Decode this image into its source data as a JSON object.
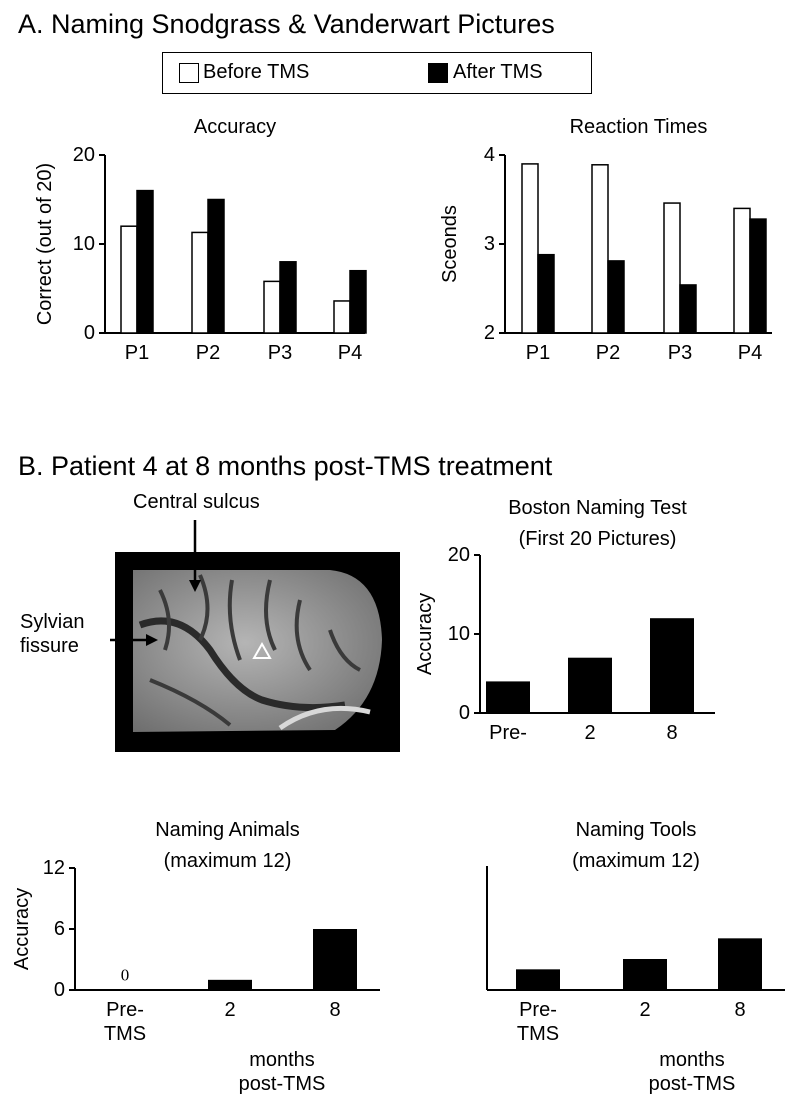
{
  "sections": [
    "A. Naming Snodgrass & Vanderwart Pictures",
    "B. Patient 4 at 8 months post-TMS treatment"
  ],
  "brain_image": {
    "labels": [
      "Central sulcus",
      "Sylvian\nfissure"
    ]
  },
  "chart_data": [
    {
      "type": "bar",
      "title": "Accuracy",
      "y_label": "Correct (out of 20)",
      "categories": [
        "P1",
        "P2",
        "P3",
        "P4"
      ],
      "series": [
        {
          "name": "Before TMS",
          "color": "#ffffff",
          "values": [
            12,
            11.3,
            5.8,
            3.6
          ]
        },
        {
          "name": "After TMS",
          "color": "#000000",
          "values": [
            16,
            15,
            8,
            7
          ]
        }
      ],
      "ylim": [
        0,
        20
      ],
      "yticks": [
        0,
        10,
        20
      ]
    },
    {
      "type": "bar",
      "title": "Reaction Times",
      "y_label": "Sceonds",
      "categories": [
        "P1",
        "P2",
        "P3",
        "P4"
      ],
      "series": [
        {
          "color": "#ffffff",
          "values": [
            3.9,
            3.89,
            3.46,
            3.4
          ]
        },
        {
          "color": "#000000",
          "values": [
            2.88,
            2.81,
            2.54,
            3.28
          ]
        }
      ],
      "ylim": [
        2,
        4
      ],
      "yticks": [
        2,
        3,
        4
      ]
    },
    {
      "type": "bar",
      "title": "Boston Naming Test",
      "subtitle": "(First 20 Pictures)",
      "y_label": "Accuracy",
      "categories": [
        "Pre-",
        "2",
        "8"
      ],
      "values": [
        4,
        7,
        12
      ],
      "color": "#000000",
      "ylim": [
        0,
        20
      ],
      "yticks": [
        0,
        10,
        20
      ]
    },
    {
      "type": "bar",
      "title": "Naming Animals",
      "subtitle": "(maximum 12)",
      "y_label": "Accuracy",
      "x_label": "months\npost-TMS",
      "categories": [
        "Pre-\nTMS",
        "2",
        "8"
      ],
      "values": [
        0,
        1,
        6
      ],
      "value_labels": [
        "0",
        null,
        null
      ],
      "color": "#000000",
      "ylim": [
        0,
        12
      ],
      "yticks": [
        0,
        6,
        12
      ]
    },
    {
      "type": "bar",
      "title": "Naming Tools",
      "subtitle": "(maximum 12)",
      "x_label": "months\npost-TMS",
      "categories": [
        "Pre-\nTMS",
        "2",
        "8"
      ],
      "values": [
        2,
        3,
        5
      ],
      "color": "#000000",
      "ylim": [
        0,
        12
      ]
    }
  ]
}
